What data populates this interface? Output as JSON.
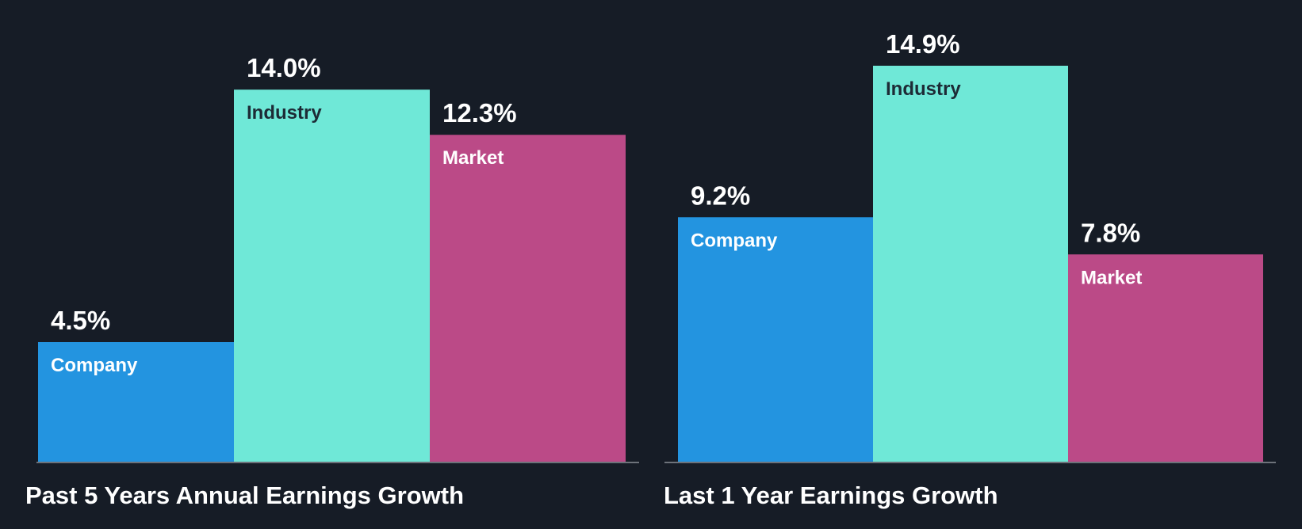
{
  "chart_data": [
    {
      "type": "bar",
      "title": "Past 5 Years Annual Earnings Growth",
      "categories": [
        "Company",
        "Industry",
        "Market"
      ],
      "values": [
        4.5,
        14.0,
        12.3
      ],
      "value_labels": [
        "4.5%",
        "14.0%",
        "12.3%"
      ],
      "colors": [
        "#2394e0",
        "#6fe8d7",
        "#bb4a87"
      ],
      "label_colors": [
        "#ffffff",
        "#1d2b36",
        "#ffffff"
      ],
      "ylim": [
        0,
        14.9
      ],
      "xlabel": "",
      "ylabel": ""
    },
    {
      "type": "bar",
      "title": "Last 1 Year Earnings Growth",
      "categories": [
        "Company",
        "Industry",
        "Market"
      ],
      "values": [
        9.2,
        14.9,
        7.8
      ],
      "value_labels": [
        "9.2%",
        "14.9%",
        "7.8%"
      ],
      "colors": [
        "#2394e0",
        "#6fe8d7",
        "#bb4a87"
      ],
      "label_colors": [
        "#ffffff",
        "#1d2b36",
        "#ffffff"
      ],
      "ylim": [
        0,
        14.9
      ],
      "xlabel": "",
      "ylabel": ""
    }
  ],
  "colors": {
    "background": "#161c26",
    "baseline": "#8a8f96"
  }
}
